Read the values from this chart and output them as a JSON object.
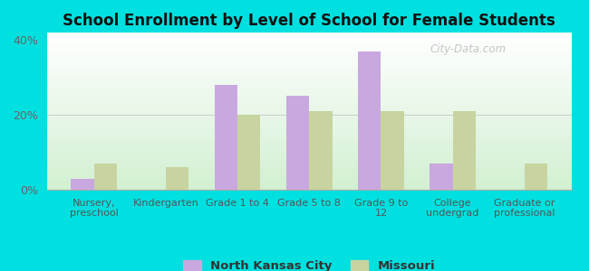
{
  "title": "School Enrollment by Level of School for Female Students",
  "categories": [
    "Nursery,\npreschool",
    "Kindergarten",
    "Grade 1 to 4",
    "Grade 5 to 8",
    "Grade 9 to\n12",
    "College\nundergrad",
    "Graduate or\nprofessional"
  ],
  "nkc_values": [
    3.0,
    0.0,
    28.0,
    25.0,
    37.0,
    7.0,
    0.0
  ],
  "mo_values": [
    7.0,
    6.0,
    20.0,
    21.0,
    21.0,
    21.0,
    7.0
  ],
  "nkc_color": "#c9a8e0",
  "mo_color": "#c8d4a0",
  "background_outer": "#00e0e0",
  "ylim": [
    0,
    42
  ],
  "yticks": [
    0,
    20,
    40
  ],
  "ytick_labels": [
    "0%",
    "20%",
    "40%"
  ],
  "legend_nkc": "North Kansas City",
  "legend_mo": "Missouri",
  "bar_width": 0.32,
  "watermark": "City-Data.com"
}
